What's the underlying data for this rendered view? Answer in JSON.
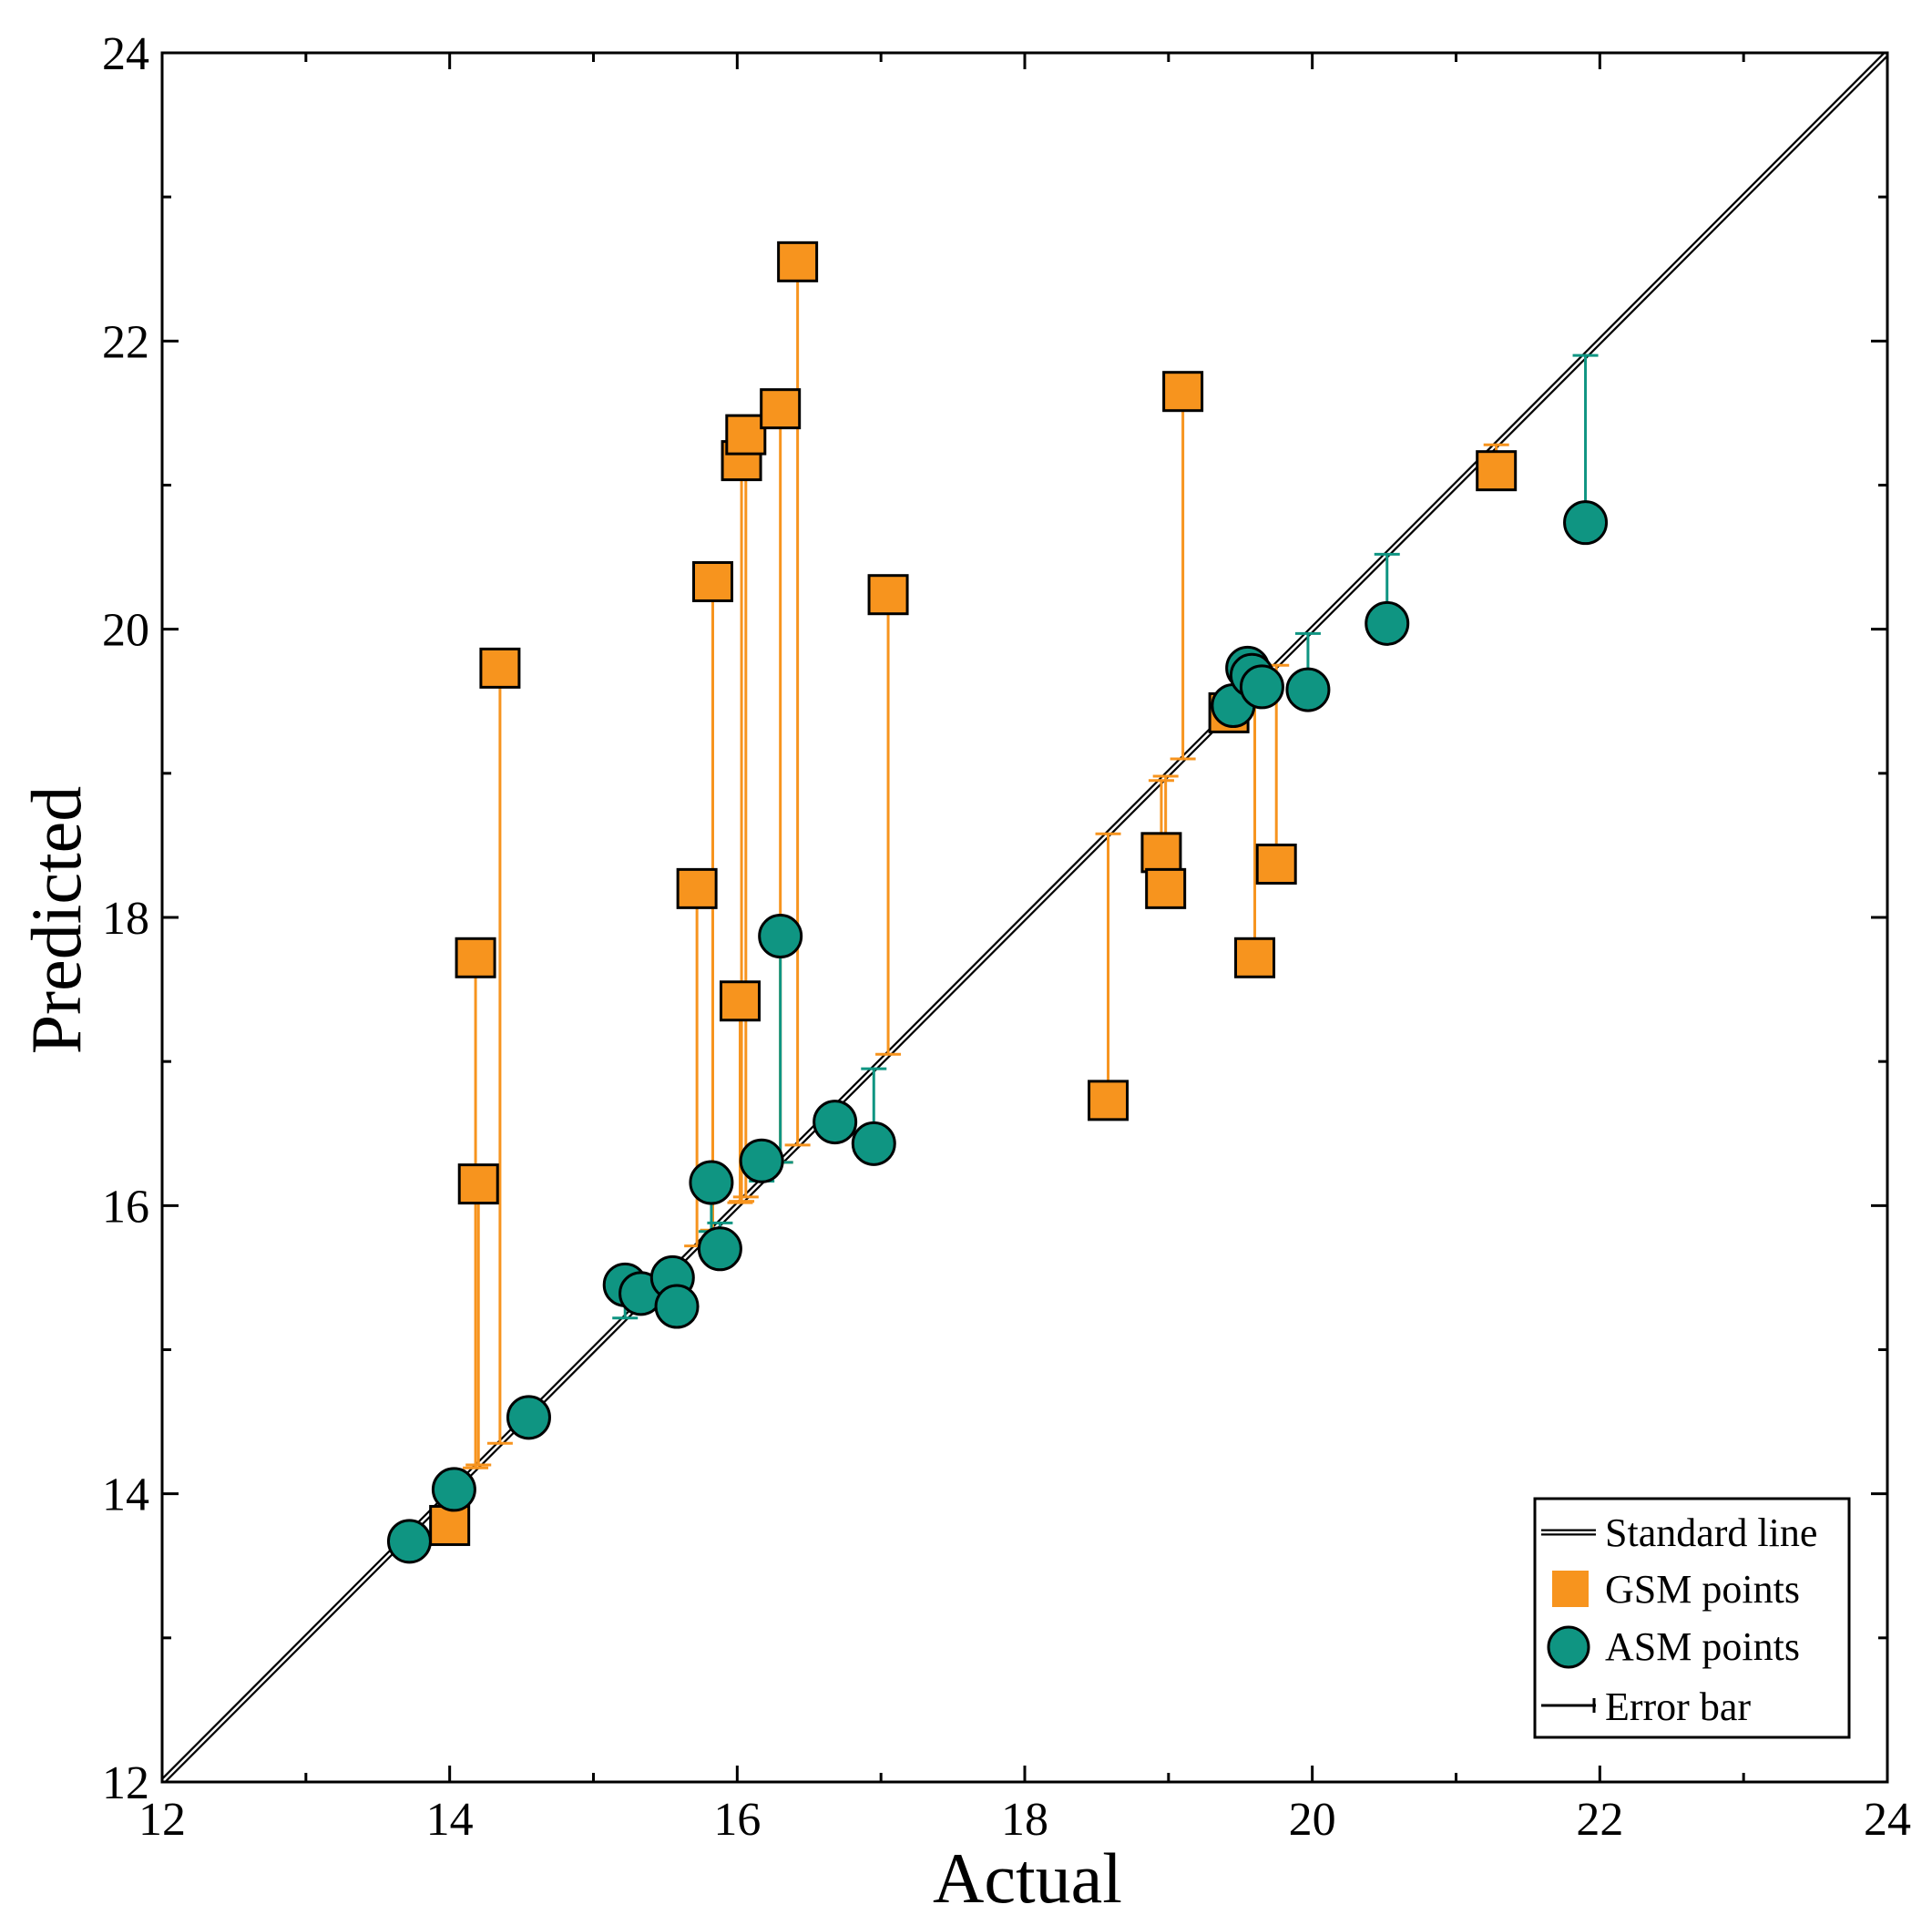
{
  "chart_data": {
    "type": "scatter",
    "xlabel": "Actual",
    "ylabel": "Predicted",
    "xlim": [
      12,
      24
    ],
    "ylim": [
      12,
      24
    ],
    "x_ticks": [
      12,
      14,
      16,
      18,
      20,
      22,
      24
    ],
    "y_ticks": [
      12,
      14,
      16,
      18,
      20,
      22,
      24
    ],
    "x_tick_labels": [
      "12",
      "14",
      "16",
      "18",
      "20",
      "22",
      "24"
    ],
    "y_tick_labels": [
      "12",
      "14",
      "16",
      "18",
      "20",
      "22",
      "24"
    ],
    "minor_tick_step": 1,
    "grid": false,
    "legend_position": "bottom-right",
    "colors": {
      "gsm": "#f7941e",
      "gsm_bar": "#f7941e",
      "asm": "#0f9582",
      "asm_bar": "#0f9582",
      "line": "#000000"
    },
    "legend": {
      "standard_line": "Standard line",
      "gsm": "GSM points",
      "asm": "ASM points",
      "error_bar": "Error bar"
    },
    "series": [
      {
        "name": "GSM points",
        "marker": "square",
        "points": [
          {
            "x": 14.0,
            "y": 13.78
          },
          {
            "x": 14.18,
            "y": 17.72
          },
          {
            "x": 14.2,
            "y": 16.15
          },
          {
            "x": 14.35,
            "y": 19.73
          },
          {
            "x": 15.72,
            "y": 18.2
          },
          {
            "x": 15.83,
            "y": 20.33
          },
          {
            "x": 16.02,
            "y": 17.42
          },
          {
            "x": 16.03,
            "y": 21.17
          },
          {
            "x": 16.06,
            "y": 21.35
          },
          {
            "x": 16.3,
            "y": 21.53
          },
          {
            "x": 16.42,
            "y": 22.55
          },
          {
            "x": 17.05,
            "y": 20.24
          },
          {
            "x": 18.58,
            "y": 16.73
          },
          {
            "x": 18.95,
            "y": 18.45
          },
          {
            "x": 18.98,
            "y": 18.2
          },
          {
            "x": 19.1,
            "y": 21.65
          },
          {
            "x": 19.42,
            "y": 19.42
          },
          {
            "x": 19.6,
            "y": 17.72
          },
          {
            "x": 19.75,
            "y": 18.37
          },
          {
            "x": 21.28,
            "y": 21.1
          }
        ]
      },
      {
        "name": "ASM points",
        "marker": "circle",
        "points": [
          {
            "x": 13.72,
            "y": 13.67
          },
          {
            "x": 14.03,
            "y": 14.03
          },
          {
            "x": 14.55,
            "y": 14.53
          },
          {
            "x": 15.22,
            "y": 15.45
          },
          {
            "x": 15.33,
            "y": 15.39
          },
          {
            "x": 15.55,
            "y": 15.5
          },
          {
            "x": 15.58,
            "y": 15.3
          },
          {
            "x": 15.82,
            "y": 16.16
          },
          {
            "x": 15.88,
            "y": 15.7
          },
          {
            "x": 16.17,
            "y": 16.31
          },
          {
            "x": 16.3,
            "y": 17.87
          },
          {
            "x": 16.68,
            "y": 16.58
          },
          {
            "x": 16.95,
            "y": 16.43
          },
          {
            "x": 19.45,
            "y": 19.47
          },
          {
            "x": 19.55,
            "y": 19.73
          },
          {
            "x": 19.58,
            "y": 19.68
          },
          {
            "x": 19.65,
            "y": 19.6
          },
          {
            "x": 19.97,
            "y": 19.58
          },
          {
            "x": 20.52,
            "y": 20.04
          },
          {
            "x": 21.9,
            "y": 20.74
          }
        ]
      }
    ]
  }
}
